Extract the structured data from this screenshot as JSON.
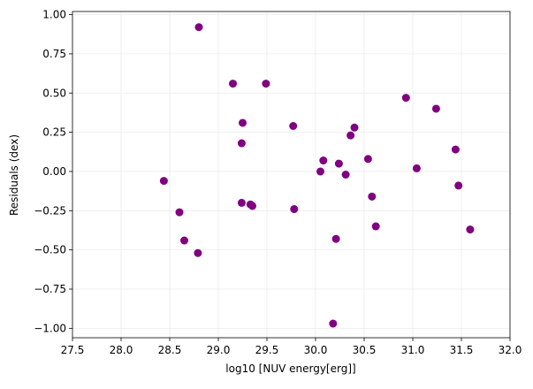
{
  "chart_data": {
    "type": "scatter",
    "xlabel": "log10 [NUV energy[erg]]",
    "ylabel": "Residuals (dex)",
    "color": "#800080",
    "grid": true,
    "x": [
      28.44,
      28.6,
      28.65,
      28.79,
      28.8,
      29.15,
      29.25,
      29.24,
      29.24,
      29.33,
      29.35,
      29.49,
      29.77,
      29.78,
      30.05,
      30.08,
      30.18,
      30.21,
      30.24,
      30.31,
      30.36,
      30.4,
      30.54,
      30.58,
      30.62,
      30.93,
      31.04,
      31.24,
      31.44,
      31.47,
      31.59
    ],
    "values": [
      -0.06,
      -0.26,
      -0.44,
      -0.52,
      0.92,
      0.56,
      0.31,
      0.18,
      -0.2,
      -0.21,
      -0.22,
      0.56,
      0.29,
      -0.24,
      0.0,
      0.07,
      -0.97,
      -0.43,
      0.05,
      -0.02,
      0.23,
      0.28,
      0.08,
      -0.16,
      -0.35,
      0.47,
      0.02,
      0.4,
      0.14,
      -0.09,
      -0.37
    ],
    "xlim": [
      27.5,
      32.0
    ],
    "ylim": [
      -1.06,
      1.02
    ],
    "xticks": [
      {
        "value": 27.5,
        "label": "27.5"
      },
      {
        "value": 28,
        "label": "28.0"
      },
      {
        "value": 28.5,
        "label": "28.5"
      },
      {
        "value": 29,
        "label": "29.0"
      },
      {
        "value": 29.5,
        "label": "29.5"
      },
      {
        "value": 30,
        "label": "30.0"
      },
      {
        "value": 30.5,
        "label": "30.5"
      },
      {
        "value": 31,
        "label": "31.0"
      },
      {
        "value": 31.5,
        "label": "31.5"
      },
      {
        "value": 32,
        "label": "32.0"
      }
    ],
    "yticks": [
      {
        "value": -1,
        "label": "−1.00"
      },
      {
        "value": -0.75,
        "label": "−0.75"
      },
      {
        "value": -0.5,
        "label": "−0.50"
      },
      {
        "value": -0.25,
        "label": "−0.25"
      },
      {
        "value": 0,
        "label": "0.00"
      },
      {
        "value": 0.25,
        "label": "0.25"
      },
      {
        "value": 0.5,
        "label": "0.50"
      },
      {
        "value": 0.75,
        "label": "0.75"
      },
      {
        "value": 1,
        "label": "1.00"
      }
    ]
  }
}
